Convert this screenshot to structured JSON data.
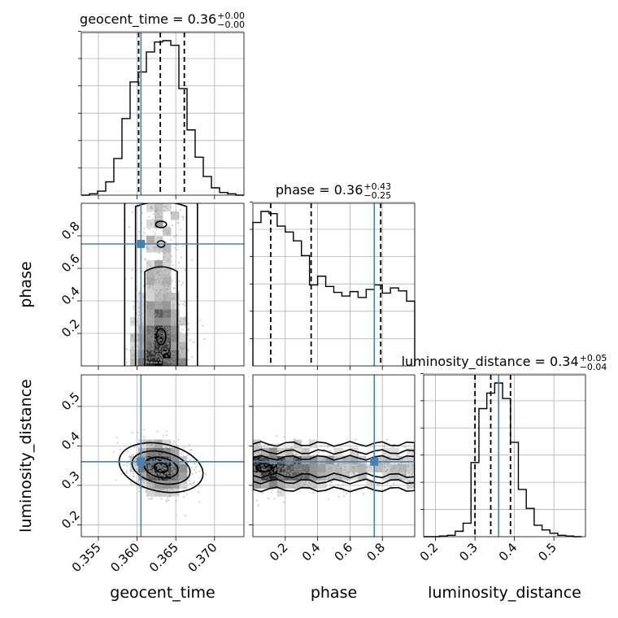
{
  "chart_data": {
    "type": "corner",
    "parameters": [
      "geocent_time",
      "phase",
      "luminosity_distance"
    ],
    "titles": {
      "geocent_time": {
        "label": "geocent_time = 0.36",
        "sup": "+0.00",
        "sub": "−0.00"
      },
      "phase": {
        "label": "phase = 0.36",
        "sup": "+0.43",
        "sub": "−0.25"
      },
      "luminosity_distance": {
        "label": "luminosity_distance = 0.34",
        "sup": "+0.05",
        "sub": "−0.04"
      }
    },
    "axes": {
      "geocent_time": {
        "range": [
          0.3528,
          0.3738
        ],
        "ticks": [
          0.355,
          0.36,
          0.365,
          0.37
        ],
        "tick_labels": [
          "0.355",
          "0.360",
          "0.365",
          "0.370"
        ]
      },
      "phase": {
        "range": [
          0.0,
          1.0
        ],
        "ticks": [
          0.2,
          0.4,
          0.6,
          0.8
        ],
        "tick_labels": [
          "0.2",
          "0.4",
          "0.6",
          "0.8"
        ]
      },
      "luminosity_distance": {
        "range": [
          0.17,
          0.58
        ],
        "ticks": [
          0.2,
          0.3,
          0.4,
          0.5
        ],
        "tick_labels": [
          "0.2",
          "0.3",
          "0.4",
          "0.5"
        ]
      }
    },
    "truths": {
      "geocent_time": 0.3605,
      "phase": 0.75,
      "luminosity_distance": 0.36
    },
    "quantiles": {
      "geocent_time": [
        0.3602,
        0.363,
        0.3661
      ],
      "phase": [
        0.11,
        0.36,
        0.79
      ],
      "luminosity_distance": [
        0.3,
        0.34,
        0.39
      ]
    },
    "histograms": {
      "geocent_time": {
        "edges": [
          0.3528,
          0.35385,
          0.3549,
          0.35595,
          0.357,
          0.35805,
          0.3591,
          0.36015,
          0.3612,
          0.36225,
          0.3633,
          0.36435,
          0.3654,
          0.36645,
          0.3675,
          0.36855,
          0.3696,
          0.37065,
          0.3717,
          0.37275,
          0.3738
        ],
        "counts": [
          0,
          2,
          6,
          20,
          55,
          115,
          170,
          185,
          215,
          230,
          232,
          225,
          160,
          98,
          57,
          28,
          11,
          4,
          2,
          0
        ]
      },
      "phase": {
        "edges": [
          0.0,
          0.05,
          0.1,
          0.15,
          0.2,
          0.25,
          0.3,
          0.35,
          0.4,
          0.45,
          0.5,
          0.55,
          0.6,
          0.65,
          0.7,
          0.75,
          0.8,
          0.85,
          0.9,
          0.95,
          1.0
        ],
        "counts": [
          195,
          210,
          207,
          190,
          182,
          170,
          150,
          110,
          122,
          108,
          100,
          95,
          101,
          93,
          104,
          110,
          99,
          106,
          102,
          88
        ]
      },
      "luminosity_distance": {
        "edges": [
          0.17,
          0.19,
          0.21,
          0.23,
          0.25,
          0.27,
          0.29,
          0.31,
          0.33,
          0.35,
          0.37,
          0.39,
          0.41,
          0.43,
          0.45,
          0.47,
          0.49,
          0.51,
          0.53,
          0.55,
          0.57
        ],
        "counts": [
          0,
          0,
          1,
          2,
          8,
          20,
          110,
          190,
          213,
          228,
          205,
          140,
          70,
          42,
          17,
          10,
          5,
          2,
          1,
          0
        ]
      }
    },
    "grid": true
  }
}
